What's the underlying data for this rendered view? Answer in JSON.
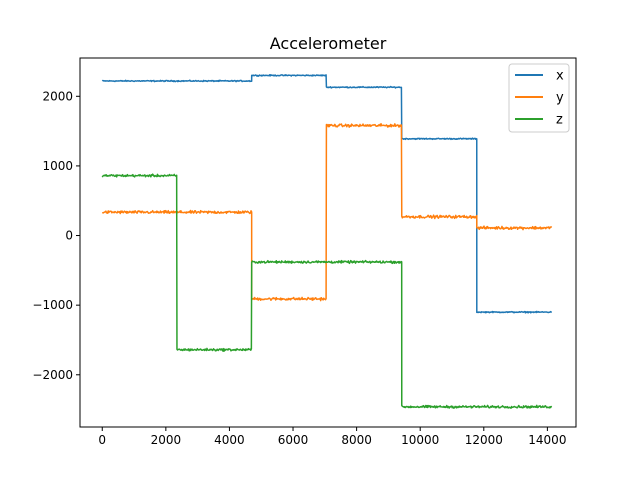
{
  "chart_data": {
    "type": "line",
    "title": "Accelerometer",
    "xlabel": "",
    "ylabel": "",
    "xlim": [
      -700,
      14900
    ],
    "ylim": [
      -2750,
      2550
    ],
    "xticks": [
      0,
      2000,
      4000,
      6000,
      8000,
      10000,
      12000,
      14000
    ],
    "xtick_labels": [
      "0",
      "2000",
      "4000",
      "6000",
      "8000",
      "10000",
      "12000",
      "14000"
    ],
    "yticks": [
      -2000,
      -1000,
      0,
      1000,
      2000
    ],
    "ytick_labels": [
      "−2000",
      "−1000",
      "0",
      "1000",
      "2000"
    ],
    "grid": false,
    "legend_position": "top-right",
    "series": [
      {
        "name": "x",
        "color": "#1f77b4",
        "noise": 12,
        "segments": [
          {
            "x0": 0,
            "x1": 4700,
            "y": 2220
          },
          {
            "x0": 4700,
            "x1": 7050,
            "y": 2300
          },
          {
            "x0": 7050,
            "x1": 9420,
            "y": 2130
          },
          {
            "x0": 9420,
            "x1": 11780,
            "y": 1390
          },
          {
            "x0": 11780,
            "x1": 14150,
            "y": -1100
          }
        ]
      },
      {
        "name": "y",
        "color": "#ff7f0e",
        "noise": 30,
        "segments": [
          {
            "x0": 0,
            "x1": 4700,
            "y": 335
          },
          {
            "x0": 4700,
            "x1": 7050,
            "y": -910
          },
          {
            "x0": 7050,
            "x1": 9420,
            "y": 1580
          },
          {
            "x0": 9420,
            "x1": 11780,
            "y": 270
          },
          {
            "x0": 11780,
            "x1": 14150,
            "y": 110
          }
        ]
      },
      {
        "name": "z",
        "color": "#2ca02c",
        "noise": 25,
        "segments": [
          {
            "x0": 0,
            "x1": 2350,
            "y": 860
          },
          {
            "x0": 2350,
            "x1": 4700,
            "y": -1640
          },
          {
            "x0": 4700,
            "x1": 9420,
            "y": -380
          },
          {
            "x0": 9420,
            "x1": 14150,
            "y": -2460
          }
        ]
      }
    ]
  }
}
